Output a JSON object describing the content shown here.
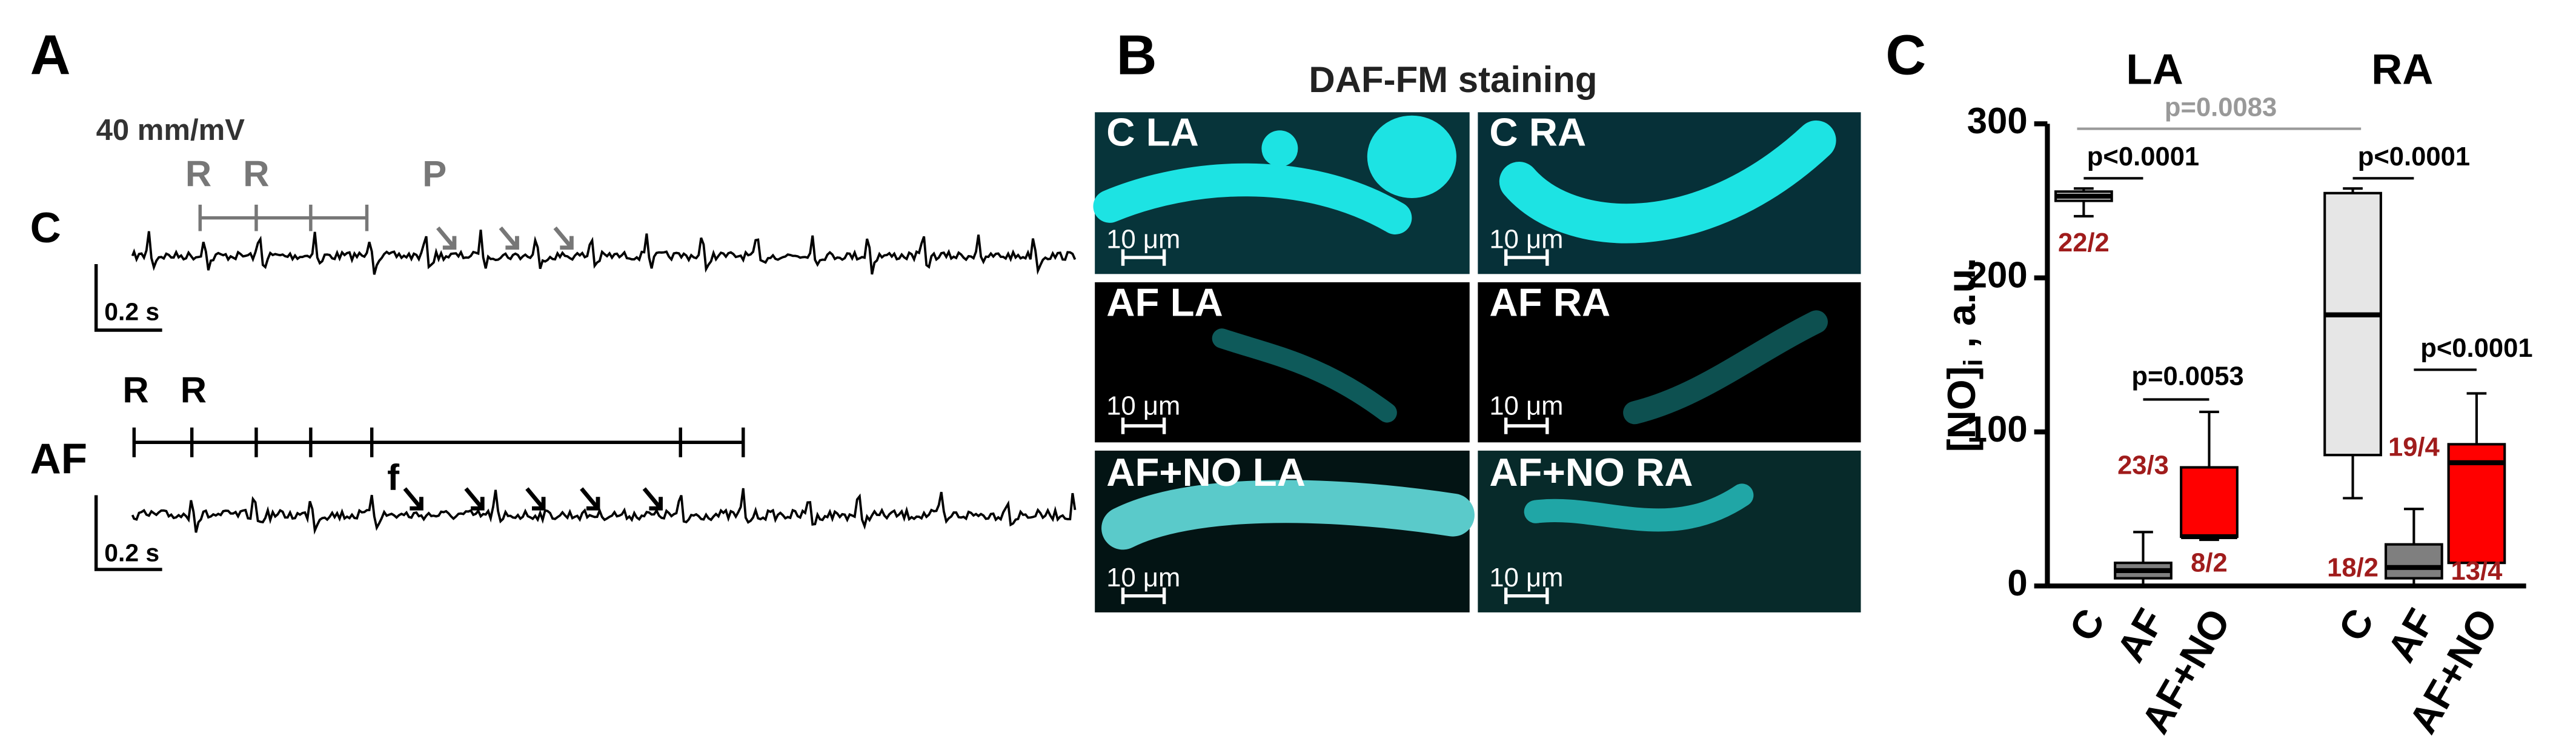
{
  "panels": {
    "a": {
      "letter": "A",
      "gain": "40 mm/mV",
      "c_label": "C",
      "af_label": "AF",
      "c_r1": "R",
      "c_r2": "R",
      "c_p": "P",
      "af_r1": "R",
      "af_r2": "R",
      "af_f": "f",
      "c_scale": "0.2 s",
      "af_scale": "0.2 s"
    },
    "b": {
      "letter": "B",
      "title": "DAF-FM staining",
      "tiles": [
        {
          "label": "C LA",
          "scale": "10 μm"
        },
        {
          "label": "C RA",
          "scale": "10 μm"
        },
        {
          "label": "AF LA",
          "scale": "10 μm"
        },
        {
          "label": "AF RA",
          "scale": "10 μm"
        },
        {
          "label": "AF+NO LA",
          "scale": "10 μm"
        },
        {
          "label": "AF+NO RA",
          "scale": "10 μm"
        }
      ]
    }
  },
  "chart_data": {
    "type": "box",
    "letter": "C",
    "ylabel": {
      "main": "[NO]",
      "sub": "i",
      "rest": " , a.u."
    },
    "groups": [
      "LA",
      "RA"
    ],
    "ylim": [
      0,
      300
    ],
    "yticks": [
      0,
      100,
      200,
      300
    ],
    "boxes": [
      {
        "category": "C",
        "group": 0,
        "color": "#e6e6e6",
        "low": 240,
        "q1": 250,
        "median": 253,
        "q3": 256,
        "high": 258,
        "n": "22/2"
      },
      {
        "category": "AF",
        "group": 0,
        "color": "#7f7f7f",
        "low": 0,
        "q1": 5,
        "median": 10,
        "q3": 15,
        "high": 35,
        "n": "23/3"
      },
      {
        "category": "AF+NO",
        "group": 0,
        "color": "#ff0000",
        "low": 30,
        "q1": 32,
        "median": 32,
        "q3": 77,
        "high": 113,
        "n": "8/2"
      },
      {
        "category": "C",
        "group": 1,
        "color": "#e6e6e6",
        "low": 57,
        "q1": 85,
        "median": 176,
        "q3": 255,
        "high": 258,
        "n": "18/2"
      },
      {
        "category": "AF",
        "group": 1,
        "color": "#7f7f7f",
        "low": 0,
        "q1": 5,
        "median": 12,
        "q3": 27,
        "high": 50,
        "n": "19/4"
      },
      {
        "category": "AF+NO",
        "group": 1,
        "color": "#ff0000",
        "low": 15,
        "q1": 15,
        "median": 80,
        "q3": 92,
        "high": 125,
        "n": "13/4"
      }
    ],
    "comparisons": [
      {
        "label": "p=0.0083",
        "color": "#999999"
      },
      {
        "label": "p<0.0001",
        "color": "#000000"
      },
      {
        "label": "p=0.0053",
        "color": "#000000"
      },
      {
        "label": "p<0.0001",
        "color": "#000000"
      },
      {
        "label": "p<0.0001",
        "color": "#000000"
      }
    ]
  }
}
